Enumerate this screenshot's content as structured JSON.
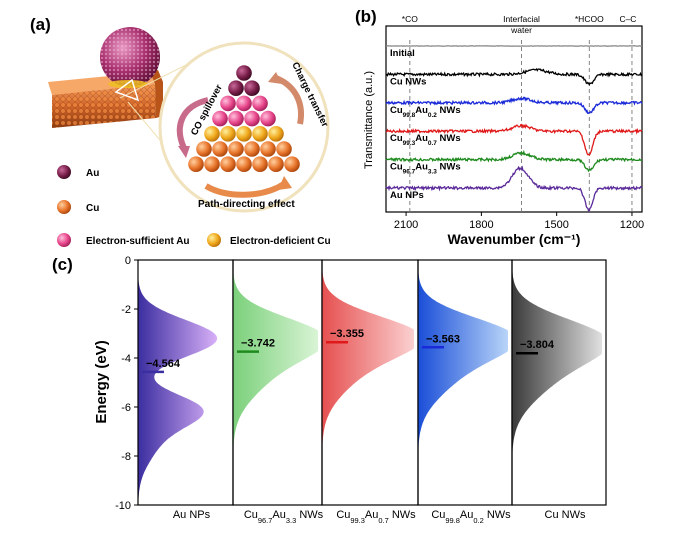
{
  "panels": {
    "a": "(a)",
    "b": "(b)",
    "c": "(c)"
  },
  "scheme": {
    "labels": {
      "co_spillover": "CO spillover",
      "charge_transfer": "Charge transfer",
      "path_directing": "Path-directing effect"
    },
    "legend": [
      {
        "key": "au",
        "label": "Au",
        "color": "#7a1e4a"
      },
      {
        "key": "cu",
        "label": "Cu",
        "color": "#e8742a"
      },
      {
        "key": "es_au",
        "label": "Electron-sufficient Au",
        "color": "#e8478c"
      },
      {
        "key": "ed_cu",
        "label": "Electron-deficient Cu",
        "color": "#f0a81c"
      }
    ]
  },
  "chart_data": [
    {
      "panel": "b",
      "type": "line",
      "xlabel": "Wavenumber (cm⁻¹)",
      "ylabel": "Transmittance (a.u.)",
      "xticks": [
        2100,
        1800,
        1500,
        1200
      ],
      "xlim": [
        2180,
        1160
      ],
      "reference_lines": [
        {
          "label": "*CO",
          "x": 2085
        },
        {
          "label": "Interfacial water",
          "x": 1640
        },
        {
          "label": "*HCOO",
          "x": 1370
        },
        {
          "label": "C–C",
          "x": 1200
        }
      ],
      "series": [
        {
          "name": "Initial",
          "color": "#888888",
          "baseline": 0,
          "dips": []
        },
        {
          "name": "Cu NWs",
          "color": "#000000",
          "baseline": 1,
          "dips": [
            {
              "x": 1370,
              "depth": 0.45,
              "width": 25
            },
            {
              "x": 1580,
              "depth": -0.2,
              "width": 60
            }
          ]
        },
        {
          "name": "Cu₉₉.₈Au₀.₂ NWs",
          "name_main": "Cu",
          "sub1": "99.8",
          "mid": "Au",
          "sub2": "0.2",
          "tail": " NWs",
          "color": "#1a2ad8",
          "baseline": 2,
          "dips": [
            {
              "x": 1370,
              "depth": 0.45,
              "width": 25
            },
            {
              "x": 1640,
              "depth": -0.2,
              "width": 50
            }
          ]
        },
        {
          "name": "Cu₉₉.₃Au₀.₇ NWs",
          "name_main": "Cu",
          "sub1": "99.3",
          "mid": "Au",
          "sub2": "0.7",
          "tail": " NWs",
          "color": "#e01a1a",
          "baseline": 3,
          "dips": [
            {
              "x": 1372,
              "depth": 1.1,
              "width": 22
            },
            {
              "x": 1640,
              "depth": -0.25,
              "width": 50
            }
          ]
        },
        {
          "name": "Cu₉₆.₇Au₃.₃ NWs",
          "name_main": "Cu",
          "sub1": "96.7",
          "mid": "Au",
          "sub2": "3.3",
          "tail": " NWs",
          "color": "#1e8a1e",
          "baseline": 4,
          "dips": [
            {
              "x": 1370,
              "depth": 0.5,
              "width": 25
            },
            {
              "x": 1640,
              "depth": -0.3,
              "width": 50
            }
          ]
        },
        {
          "name": "Au NPs",
          "color": "#5a2a9a",
          "baseline": 5,
          "dips": [
            {
              "x": 1372,
              "depth": 1.0,
              "width": 22
            },
            {
              "x": 1645,
              "depth": -0.9,
              "width": 45
            }
          ]
        }
      ]
    },
    {
      "panel": "c",
      "type": "area",
      "ylabel": "Energy (eV)",
      "ylim": [
        -10,
        0
      ],
      "yticks": [
        0,
        -2,
        -4,
        -6,
        -8,
        -10
      ],
      "series": [
        {
          "name": "Au NPs",
          "label_main": "Au NPs",
          "center": -4.564,
          "center_label": "−4.564",
          "colors": [
            "#3b2ea0",
            "#d8b0f8"
          ],
          "mark_color": "#3b2ea0",
          "peaks": [
            {
              "e": -3.2,
              "amp": 1.0,
              "sd": 0.75
            },
            {
              "e": -6.1,
              "amp": 0.72,
              "sd": 0.65
            },
            {
              "e": -7.3,
              "amp": 0.25,
              "sd": 0.9
            }
          ]
        },
        {
          "name": "Cu96.7Au3.3 NWs",
          "label_main": "Cu",
          "sub1": "96.7",
          "mid": "Au",
          "sub2": "3.3",
          "tail": " NWs",
          "center": -3.742,
          "center_label": "−3.742",
          "colors": [
            "#7bd07b",
            "#d9f4d5"
          ],
          "mark_color": "#1e8a1e",
          "peaks": [
            {
              "e": -3.1,
              "amp": 1.0,
              "sd": 0.8
            },
            {
              "e": -4.4,
              "amp": 0.5,
              "sd": 1.1
            }
          ]
        },
        {
          "name": "Cu99.3Au0.7 NWs",
          "label_main": "Cu",
          "sub1": "99.3",
          "mid": "Au",
          "sub2": "0.7",
          "tail": " NWs",
          "center": -3.355,
          "center_label": "−3.355",
          "colors": [
            "#e65050",
            "#fbd0d0"
          ],
          "mark_color": "#e01a1a",
          "peaks": [
            {
              "e": -3.05,
              "amp": 1.0,
              "sd": 0.8
            },
            {
              "e": -4.3,
              "amp": 0.45,
              "sd": 1.1
            }
          ]
        },
        {
          "name": "Cu99.8Au0.2 NWs",
          "label_main": "Cu",
          "sub1": "99.8",
          "mid": "Au",
          "sub2": "0.2",
          "tail": " NWs",
          "center": -3.563,
          "center_label": "−3.563",
          "colors": [
            "#1a4ed8",
            "#b8d4f8"
          ],
          "mark_color": "#1a2ad8",
          "peaks": [
            {
              "e": -3.1,
              "amp": 1.0,
              "sd": 0.8
            },
            {
              "e": -4.4,
              "amp": 0.5,
              "sd": 1.1
            }
          ]
        },
        {
          "name": "Cu NWs",
          "label_main": "Cu NWs",
          "center": -3.804,
          "center_label": "−3.804",
          "colors": [
            "#3a3a3a",
            "#e0e0e0"
          ],
          "mark_color": "#000000",
          "peaks": [
            {
              "e": -3.2,
              "amp": 1.0,
              "sd": 0.85
            },
            {
              "e": -4.6,
              "amp": 0.5,
              "sd": 1.1
            }
          ]
        }
      ]
    }
  ]
}
